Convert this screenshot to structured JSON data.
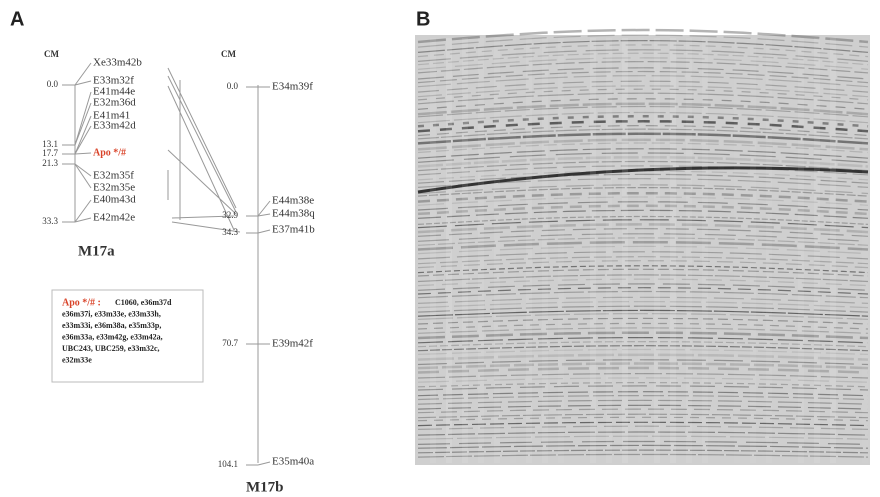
{
  "panel_a": {
    "label": "A",
    "map_a": {
      "unit": "CM",
      "positions": [
        "0.0",
        "13.1",
        "17.7",
        "21.3",
        "33.3"
      ],
      "markers": [
        "Xe33m42b",
        "E33m32f",
        "E41m44e",
        "E32m36d",
        "E41m41",
        "E33m42d",
        "Apo */#",
        "E32m35f",
        "E32m35e",
        "E40m43d",
        "E42m42e"
      ],
      "name": "M17a"
    },
    "legend_box": {
      "title": "Apo */# :",
      "lines": [
        "C1060, e36m37d",
        "e36m37i, e33m33e, e33m33h,",
        "e33m33i, e36m38a, e35m33p,",
        "e36m33a, e33m42g, e33m42a,",
        "UBC243, UBC259, e33m32c,",
        "e32m33e"
      ]
    },
    "map_b": {
      "unit": "CM",
      "positions": [
        "0.0",
        "32.9",
        "34.3",
        "70.7",
        "104.1"
      ],
      "markers": [
        "E34m39f",
        "E44m38e",
        "E44m38q",
        "E37m41b",
        "E39m42f",
        "E35m40a"
      ],
      "name": "M17b"
    }
  },
  "panel_b": {
    "label": "B"
  }
}
